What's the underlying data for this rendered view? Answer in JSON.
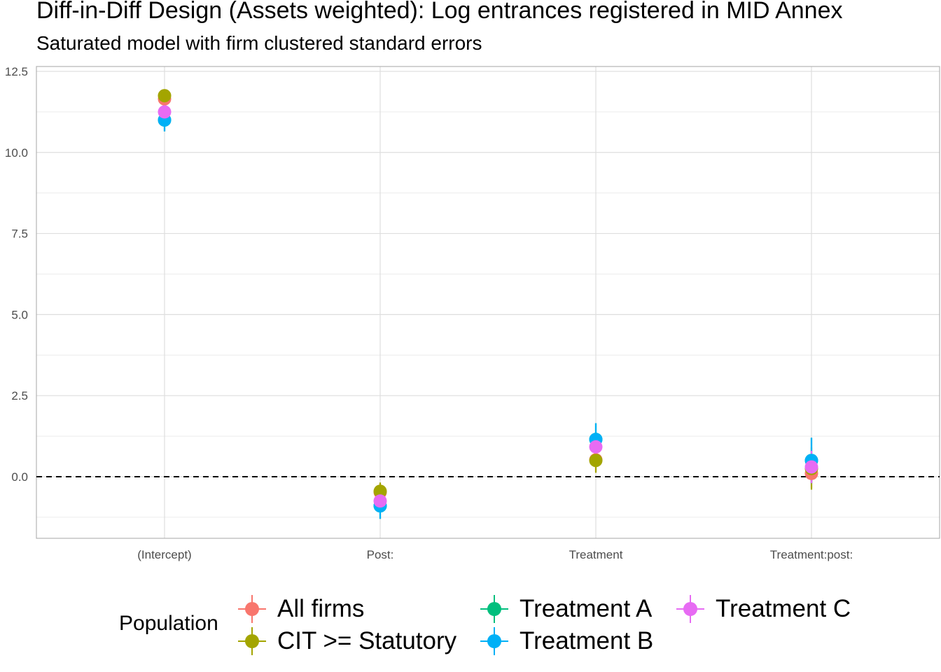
{
  "chart_data": {
    "type": "scatter",
    "title": "Diff-in-Diff Design (Assets weighted): Log entrances registered in MID Annex",
    "subtitle": "Saturated model with firm clustered standard errors",
    "xlabel": "",
    "ylabel": "",
    "categories": [
      "(Intercept)",
      "Post:",
      "Treatment",
      "Treatment:post:"
    ],
    "ylim": [
      -1.9,
      12.65
    ],
    "yticks": [
      0.0,
      2.5,
      5.0,
      7.5,
      10.0,
      12.5
    ],
    "ytick_labels": [
      "0.0",
      "2.5",
      "5.0",
      "7.5",
      "10.0",
      "12.5"
    ],
    "reference_line": {
      "y": 0,
      "style": "dashed"
    },
    "grid": true,
    "legend": {
      "title": "Population",
      "position": "bottom"
    },
    "series": [
      {
        "name": "All firms",
        "color": "#F8766D",
        "values": [
          11.65,
          -0.48,
          0.52,
          0.1
        ],
        "lower": [
          11.45,
          -0.75,
          0.15,
          -0.35
        ],
        "upper": [
          11.85,
          -0.2,
          0.9,
          0.55
        ]
      },
      {
        "name": "CIT >= Statutory",
        "color": "#A3A500",
        "values": [
          11.75,
          -0.45,
          0.5,
          0.25
        ],
        "lower": [
          11.55,
          -0.72,
          0.12,
          -0.4
        ],
        "upper": [
          11.95,
          -0.18,
          0.88,
          0.9
        ]
      },
      {
        "name": "Treatment A",
        "color": "#00BF7D",
        "values": [
          11.0,
          -0.9,
          1.15,
          0.5
        ],
        "lower": [
          10.65,
          -1.3,
          0.65,
          -0.2
        ],
        "upper": [
          11.35,
          -0.5,
          1.65,
          1.2
        ]
      },
      {
        "name": "Treatment B",
        "color": "#00B0F6",
        "values": [
          11.0,
          -0.9,
          1.15,
          0.5
        ],
        "lower": [
          10.65,
          -1.3,
          0.65,
          -0.2
        ],
        "upper": [
          11.35,
          -0.5,
          1.65,
          1.2
        ]
      },
      {
        "name": "Treatment C",
        "color": "#E76BF3",
        "values": [
          11.25,
          -0.75,
          0.92,
          0.3
        ],
        "lower": [
          11.0,
          -1.05,
          0.55,
          -0.2
        ],
        "upper": [
          11.5,
          -0.45,
          1.3,
          0.8
        ]
      }
    ]
  }
}
